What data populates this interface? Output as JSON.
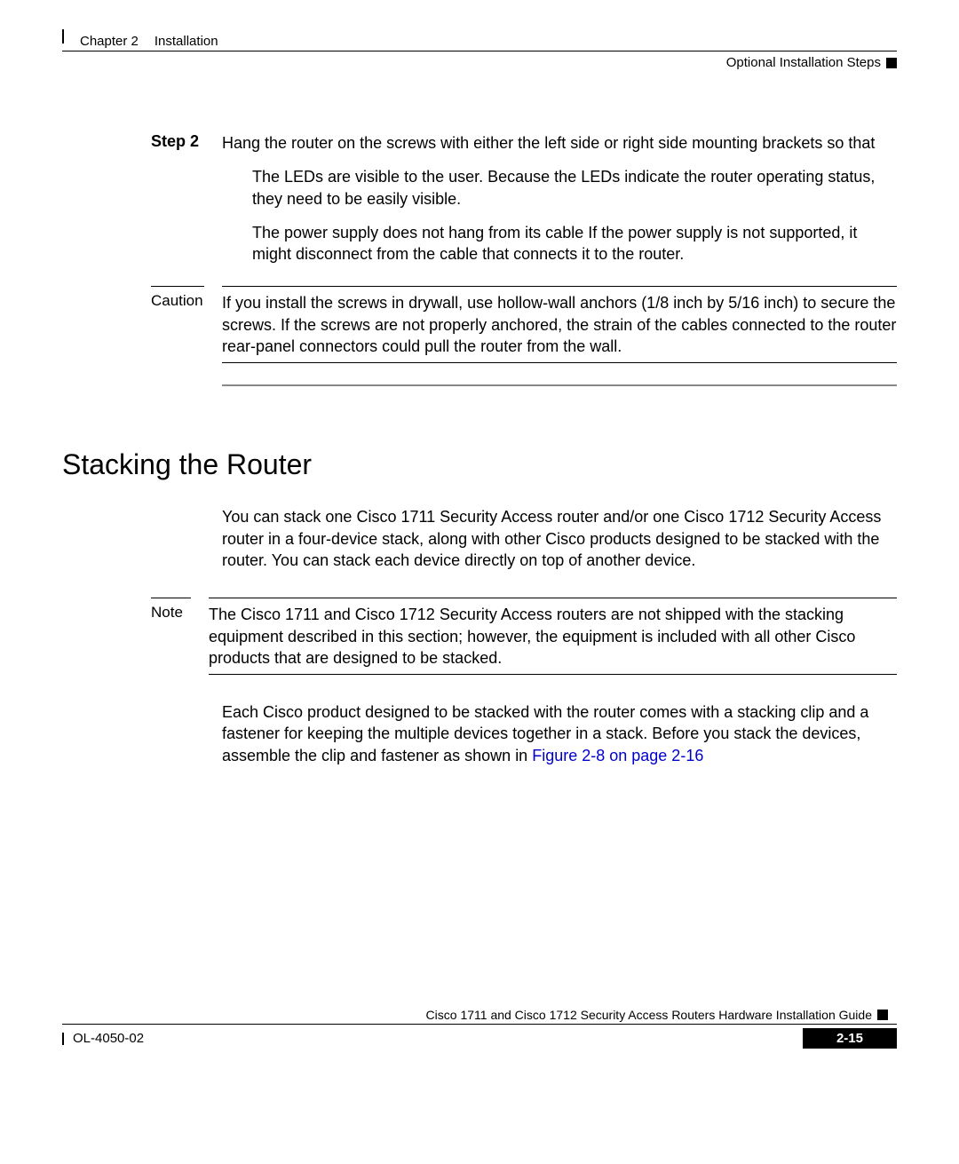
{
  "header": {
    "chapter_label": "Chapter 2",
    "chapter_title": "Installation",
    "section_title": "Optional Installation Steps"
  },
  "step": {
    "label": "Step 2",
    "text": "Hang the router on the screws with either the left side or right side mounting brackets so that"
  },
  "bullets": {
    "b1": "The LEDs are visible to the user. Because the LEDs indicate the router operating status, they need to be easily visible.",
    "b2": "The power supply does not hang from its cable If the power supply is not supported, it might disconnect from the cable that connects it to the router."
  },
  "caution": {
    "label": "Caution",
    "text": "If you install the screws in drywall, use hollow-wall anchors (1/8 inch by 5/16 inch) to secure the screws. If the screws are not properly anchored, the strain of the cables connected to the router rear-panel connectors could pull the router from the wall."
  },
  "heading": "Stacking the Router",
  "para1": "You can stack one Cisco 1711 Security Access router and/or one Cisco 1712 Security Access router in a four-device stack, along with other Cisco products designed to be stacked with the router. You can stack each device directly on top of another device.",
  "note": {
    "label": "Note",
    "text": "The Cisco 1711 and Cisco 1712 Security Access routers are not shipped with the stacking equipment described in this section; however, the equipment is included with all other Cisco products that are designed to be stacked."
  },
  "para2_part1": "Each Cisco product designed to be stacked with the router comes with a stacking clip and a fastener for keeping the multiple devices together in a stack. Before you stack the devices, assemble the clip and fastener as shown in ",
  "para2_link": "Figure 2-8 on page 2-16",
  "footer": {
    "doc_title": "Cisco 1711 and Cisco 1712 Security Access Routers Hardware Installation Guide",
    "doc_number": "OL-4050-02",
    "page_number": "2-15"
  }
}
